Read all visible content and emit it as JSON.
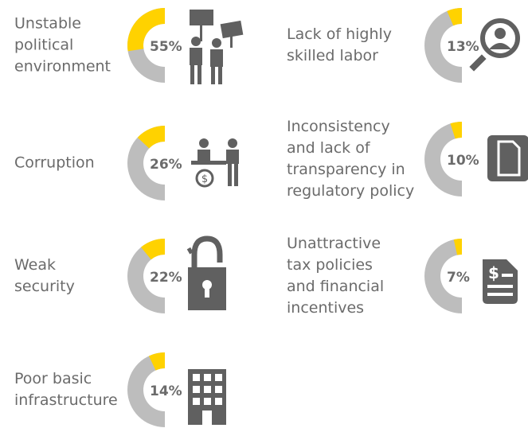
{
  "chart_data": {
    "type": "half-donut",
    "categories": [
      "Unstable\npolitical\nenvironment",
      "Corruption",
      "Weak\nsecurity",
      "Poor basic\ninfrastructure",
      "Lack of highly\nskilled labor",
      "Inconsistency\nand lack of\ntransparency in\nregulatory policy",
      "Unattractive\ntax policies\nand financial\nincentives"
    ],
    "values": [
      55,
      26,
      22,
      14,
      13,
      10,
      7
    ],
    "value_labels": [
      "55%",
      "26%",
      "22%",
      "14%",
      "13%",
      "10%",
      "7%"
    ],
    "color": "#ffd200",
    "track_color": "#bdbdbd"
  }
}
